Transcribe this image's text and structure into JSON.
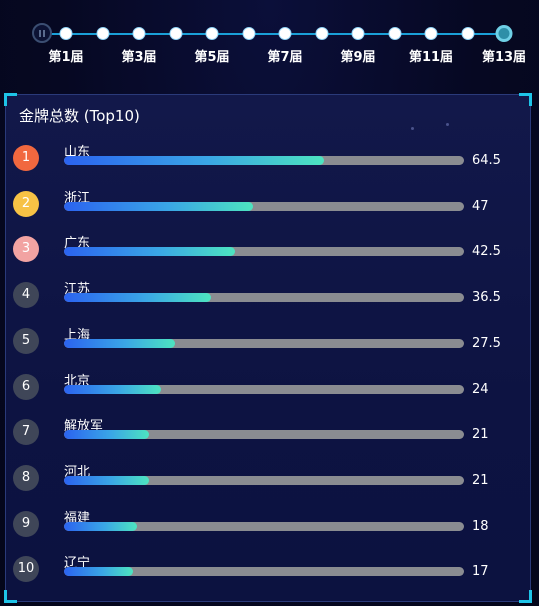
{
  "timeline": {
    "labels": [
      "第1届",
      "第3届",
      "第5届",
      "第7届",
      "第9届",
      "第11届",
      "第13届"
    ],
    "dot_count": 13,
    "active_index": 12
  },
  "panel": {
    "title": "金牌总数 (Top10)",
    "max_value": 64.5,
    "rows": [
      {
        "rank": "1",
        "name": "山东",
        "value": "64.5",
        "rank_color": "#f1683f"
      },
      {
        "rank": "2",
        "name": "浙江",
        "value": "47",
        "rank_color": "#f7c245"
      },
      {
        "rank": "3",
        "name": "广东",
        "value": "42.5",
        "rank_color": "#f2a3a2"
      },
      {
        "rank": "4",
        "name": "江苏",
        "value": "36.5",
        "rank_color": "#3f4658"
      },
      {
        "rank": "5",
        "name": "上海",
        "value": "27.5",
        "rank_color": "#3f4658"
      },
      {
        "rank": "6",
        "name": "北京",
        "value": "24",
        "rank_color": "#3f4658"
      },
      {
        "rank": "7",
        "name": "解放军",
        "value": "21",
        "rank_color": "#3f4658"
      },
      {
        "rank": "8",
        "name": "河北",
        "value": "21",
        "rank_color": "#3f4658"
      },
      {
        "rank": "9",
        "name": "福建",
        "value": "18",
        "rank_color": "#3f4658"
      },
      {
        "rank": "10",
        "name": "辽宁",
        "value": "17",
        "rank_color": "#3f4658"
      }
    ]
  }
}
